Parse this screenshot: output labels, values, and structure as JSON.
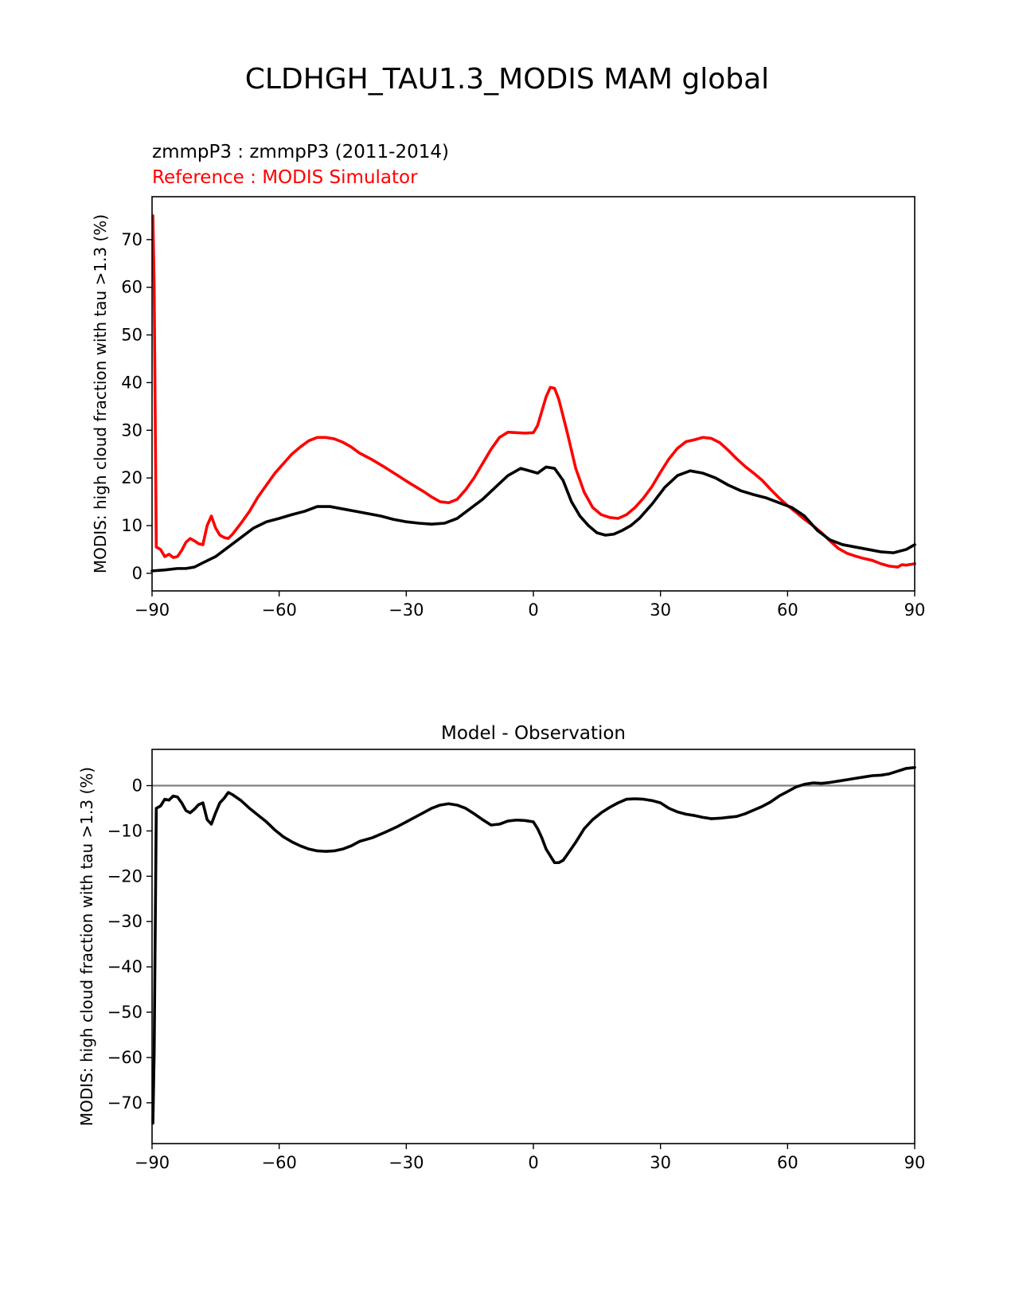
{
  "figure": {
    "suptitle": "CLDHGH_TAU1.3_MODIS MAM global"
  },
  "colors": {
    "test": "#000000",
    "reference": "#ff0000",
    "zero_line": "#808080",
    "axes": "#000000"
  },
  "chart_data": [
    {
      "type": "line",
      "title_left_1": "zmmpP3 : zmmpP3 (2011-2014)",
      "title_left_2": "Reference : MODIS Simulator",
      "ylabel": "MODIS: high cloud fraction with tau >1.3 (%)",
      "xlabel": "",
      "xlim": [
        -90,
        90
      ],
      "ylim": [
        -3.7,
        79
      ],
      "xticks": [
        -90,
        -60,
        -30,
        0,
        30,
        60,
        90
      ],
      "xtick_labels": [
        "−90",
        "−60",
        "−30",
        "0",
        "30",
        "60",
        "90"
      ],
      "yticks": [
        0,
        10,
        20,
        30,
        40,
        50,
        60,
        70
      ],
      "ytick_labels": [
        "0",
        "10",
        "20",
        "30",
        "40",
        "50",
        "60",
        "70"
      ],
      "grid": false,
      "series": [
        {
          "role": "test",
          "x": [
            -90,
            -87,
            -84,
            -82,
            -80,
            -78,
            -75,
            -72,
            -69,
            -66,
            -63,
            -60,
            -57,
            -54,
            -51,
            -48,
            -45,
            -42,
            -39,
            -36,
            -33,
            -30,
            -27,
            -24,
            -21,
            -18,
            -15,
            -12,
            -9,
            -6,
            -3,
            -1,
            1,
            3,
            5,
            7,
            9,
            11,
            13,
            15,
            17,
            19,
            21,
            23,
            25,
            28,
            31,
            34,
            37,
            40,
            43,
            46,
            49,
            52,
            55,
            58,
            61,
            64,
            67,
            70,
            73,
            76,
            79,
            82,
            85,
            88,
            90
          ],
          "y": [
            0.5,
            0.7,
            1.0,
            1.0,
            1.3,
            2.2,
            3.5,
            5.5,
            7.5,
            9.5,
            10.8,
            11.5,
            12.3,
            13.0,
            14.0,
            14.0,
            13.5,
            13.0,
            12.5,
            12.0,
            11.3,
            10.8,
            10.5,
            10.3,
            10.5,
            11.5,
            13.5,
            15.5,
            18.0,
            20.5,
            22.0,
            21.5,
            21.0,
            22.3,
            22.0,
            19.5,
            15.0,
            12.0,
            10.0,
            8.5,
            8.0,
            8.2,
            9.0,
            10.0,
            11.5,
            14.5,
            18.0,
            20.5,
            21.5,
            21.0,
            20.0,
            18.5,
            17.3,
            16.5,
            15.8,
            14.8,
            13.8,
            12.0,
            9.0,
            7.0,
            6.0,
            5.5,
            5.0,
            4.5,
            4.3,
            5.0,
            6.0
          ]
        },
        {
          "role": "reference",
          "x": [
            -89.8,
            -89.5,
            -89,
            -88,
            -87,
            -86,
            -85,
            -84,
            -83,
            -82,
            -81,
            -80,
            -79,
            -78,
            -77,
            -76,
            -75,
            -74,
            -73,
            -72,
            -71,
            -69,
            -67,
            -65,
            -63,
            -61,
            -59,
            -57,
            -55,
            -53,
            -51,
            -49,
            -47,
            -45,
            -43,
            -41,
            -38,
            -35,
            -32,
            -29,
            -26,
            -24,
            -22,
            -20,
            -18,
            -16,
            -14,
            -12,
            -10,
            -8,
            -6,
            -4,
            -2,
            0,
            1,
            2,
            3,
            4,
            5,
            6,
            7,
            8,
            10,
            12,
            14,
            16,
            18,
            20,
            22,
            24,
            26,
            28,
            30,
            32,
            34,
            36,
            38,
            40,
            42,
            44,
            46,
            48,
            50,
            52,
            54,
            56,
            58,
            60,
            62,
            64,
            66,
            68,
            70,
            72,
            74,
            76,
            78,
            80,
            82,
            84,
            86,
            87,
            88,
            90
          ],
          "y": [
            75.0,
            60.0,
            5.5,
            5.0,
            3.5,
            4.0,
            3.3,
            3.5,
            4.8,
            6.5,
            7.3,
            6.8,
            6.2,
            6.0,
            10.0,
            12.0,
            9.5,
            8.0,
            7.5,
            7.3,
            8.2,
            10.5,
            13.0,
            16.0,
            18.5,
            21.0,
            23.0,
            25.0,
            26.5,
            27.8,
            28.5,
            28.5,
            28.2,
            27.5,
            26.5,
            25.2,
            23.8,
            22.2,
            20.5,
            18.8,
            17.2,
            16.0,
            15.0,
            14.8,
            15.5,
            17.5,
            20.0,
            23.0,
            26.0,
            28.5,
            29.6,
            29.5,
            29.4,
            29.5,
            31.0,
            34.0,
            37.0,
            39.0,
            38.8,
            36.5,
            33.0,
            29.5,
            22.0,
            17.0,
            13.8,
            12.3,
            11.7,
            11.5,
            12.3,
            13.8,
            15.8,
            18.2,
            21.2,
            24.0,
            26.2,
            27.6,
            28.0,
            28.5,
            28.3,
            27.4,
            25.8,
            24.0,
            22.4,
            21.0,
            19.5,
            17.6,
            15.8,
            14.2,
            12.8,
            11.3,
            10.0,
            8.5,
            6.8,
            5.2,
            4.2,
            3.6,
            3.1,
            2.7,
            2.0,
            1.5,
            1.3,
            1.8,
            1.7,
            2.0
          ]
        }
      ]
    },
    {
      "type": "line",
      "title": "Model - Observation",
      "ylabel": "MODIS: high cloud fraction with tau >1.3 (%)",
      "xlabel": "",
      "xlim": [
        -90,
        90
      ],
      "ylim": [
        -79,
        8
      ],
      "xticks": [
        -90,
        -60,
        -30,
        0,
        30,
        60,
        90
      ],
      "xtick_labels": [
        "−90",
        "−60",
        "−30",
        "0",
        "30",
        "60",
        "90"
      ],
      "yticks": [
        0,
        -10,
        -20,
        -30,
        -40,
        -50,
        -60,
        -70
      ],
      "ytick_labels": [
        "0",
        "−10",
        "−20",
        "−30",
        "−40",
        "−50",
        "−60",
        "−70"
      ],
      "grid": false,
      "zero_line": true,
      "series": [
        {
          "role": "difference",
          "x": [
            -89.8,
            -89.5,
            -89,
            -88,
            -87,
            -86,
            -85,
            -84,
            -83,
            -82,
            -81,
            -80,
            -79,
            -78,
            -77,
            -76,
            -75,
            -74,
            -73,
            -72,
            -71,
            -69,
            -67,
            -65,
            -63,
            -61,
            -59,
            -57,
            -55,
            -53,
            -51,
            -49,
            -47,
            -45,
            -43,
            -41,
            -38,
            -35,
            -32,
            -29,
            -26,
            -24,
            -22,
            -20,
            -18,
            -16,
            -14,
            -12,
            -10,
            -8,
            -6,
            -4,
            -2,
            0,
            1,
            2,
            3,
            4,
            5,
            6,
            7,
            8,
            10,
            12,
            14,
            16,
            18,
            20,
            22,
            24,
            26,
            28,
            30,
            32,
            34,
            36,
            38,
            40,
            42,
            44,
            46,
            48,
            50,
            52,
            54,
            56,
            58,
            60,
            62,
            64,
            66,
            68,
            70,
            72,
            74,
            76,
            78,
            80,
            82,
            84,
            86,
            87,
            88,
            90
          ],
          "y": [
            -74.5,
            -59.0,
            -5.0,
            -4.5,
            -3.0,
            -3.2,
            -2.3,
            -2.5,
            -3.8,
            -5.5,
            -6.0,
            -5.2,
            -4.2,
            -3.8,
            -7.5,
            -8.5,
            -6.0,
            -3.8,
            -2.8,
            -1.5,
            -2.0,
            -3.3,
            -5.0,
            -6.5,
            -8.0,
            -9.8,
            -11.3,
            -12.4,
            -13.3,
            -14.0,
            -14.4,
            -14.5,
            -14.4,
            -14.0,
            -13.3,
            -12.3,
            -11.5,
            -10.3,
            -9.0,
            -7.5,
            -6.0,
            -5.0,
            -4.3,
            -4.0,
            -4.3,
            -5.0,
            -6.2,
            -7.5,
            -8.7,
            -8.5,
            -7.8,
            -7.6,
            -7.7,
            -8.0,
            -9.5,
            -11.5,
            -14.0,
            -15.5,
            -17.0,
            -17.0,
            -16.5,
            -15.2,
            -12.5,
            -9.5,
            -7.5,
            -6.0,
            -4.8,
            -3.8,
            -3.0,
            -2.9,
            -3.0,
            -3.3,
            -3.8,
            -5.0,
            -5.8,
            -6.3,
            -6.6,
            -7.0,
            -7.3,
            -7.2,
            -7.0,
            -6.8,
            -6.2,
            -5.4,
            -4.6,
            -3.6,
            -2.3,
            -1.3,
            -0.3,
            0.3,
            0.6,
            0.5,
            0.7,
            1.0,
            1.3,
            1.6,
            1.9,
            2.2,
            2.3,
            2.6,
            3.2,
            3.5,
            3.8,
            4.0
          ]
        }
      ]
    }
  ]
}
